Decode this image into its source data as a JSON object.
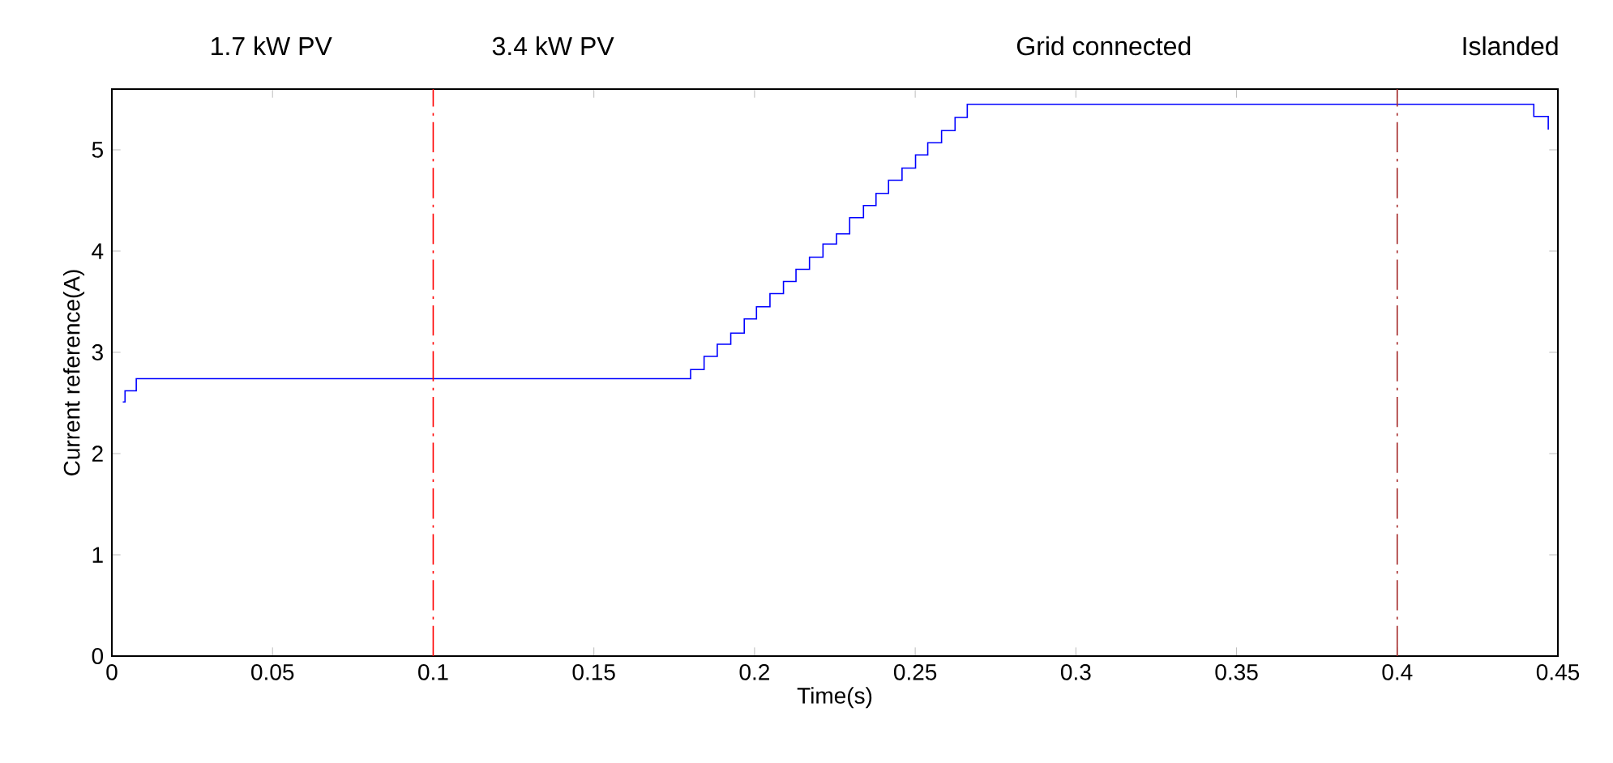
{
  "chart_data": {
    "type": "step",
    "xlabel": "Time(s)",
    "ylabel": "Current reference(A)",
    "x": [
      0.0034,
      0.0041,
      0.0076,
      0.1801,
      0.1843,
      0.1884,
      0.1926,
      0.1968,
      0.2006,
      0.2048,
      0.209,
      0.2129,
      0.2171,
      0.2213,
      0.2255,
      0.2296,
      0.2339,
      0.2378,
      0.2417,
      0.2459,
      0.2501,
      0.2539,
      0.2582,
      0.2624,
      0.2662,
      0.4425,
      0.447
    ],
    "values": [
      2.51,
      2.62,
      2.74,
      2.83,
      2.96,
      3.08,
      3.19,
      3.33,
      3.45,
      3.58,
      3.7,
      3.82,
      3.94,
      4.07,
      4.17,
      4.33,
      4.45,
      4.57,
      4.7,
      4.82,
      4.95,
      5.07,
      5.19,
      5.32,
      5.45,
      5.33,
      5.2
    ],
    "color": "#0000ff",
    "xlim": [
      0,
      0.45
    ],
    "ylim": [
      0,
      5.6
    ],
    "xticks": [
      0,
      0.05,
      0.1,
      0.15,
      0.2,
      0.25,
      0.3,
      0.35,
      0.4,
      0.45
    ],
    "yticks": [
      0,
      1,
      2,
      3,
      4,
      5
    ],
    "ref_lines": [
      {
        "axis": "x",
        "value": 0.1,
        "color": "#ff0000",
        "line_style": "dashed"
      },
      {
        "axis": "x",
        "value": 0.4,
        "color": "#a52a2a",
        "line_style": "dashed"
      }
    ],
    "annotations": [
      "1.7 kW PV",
      "3.4 kW PV",
      "Grid connected",
      "Islanded"
    ]
  }
}
